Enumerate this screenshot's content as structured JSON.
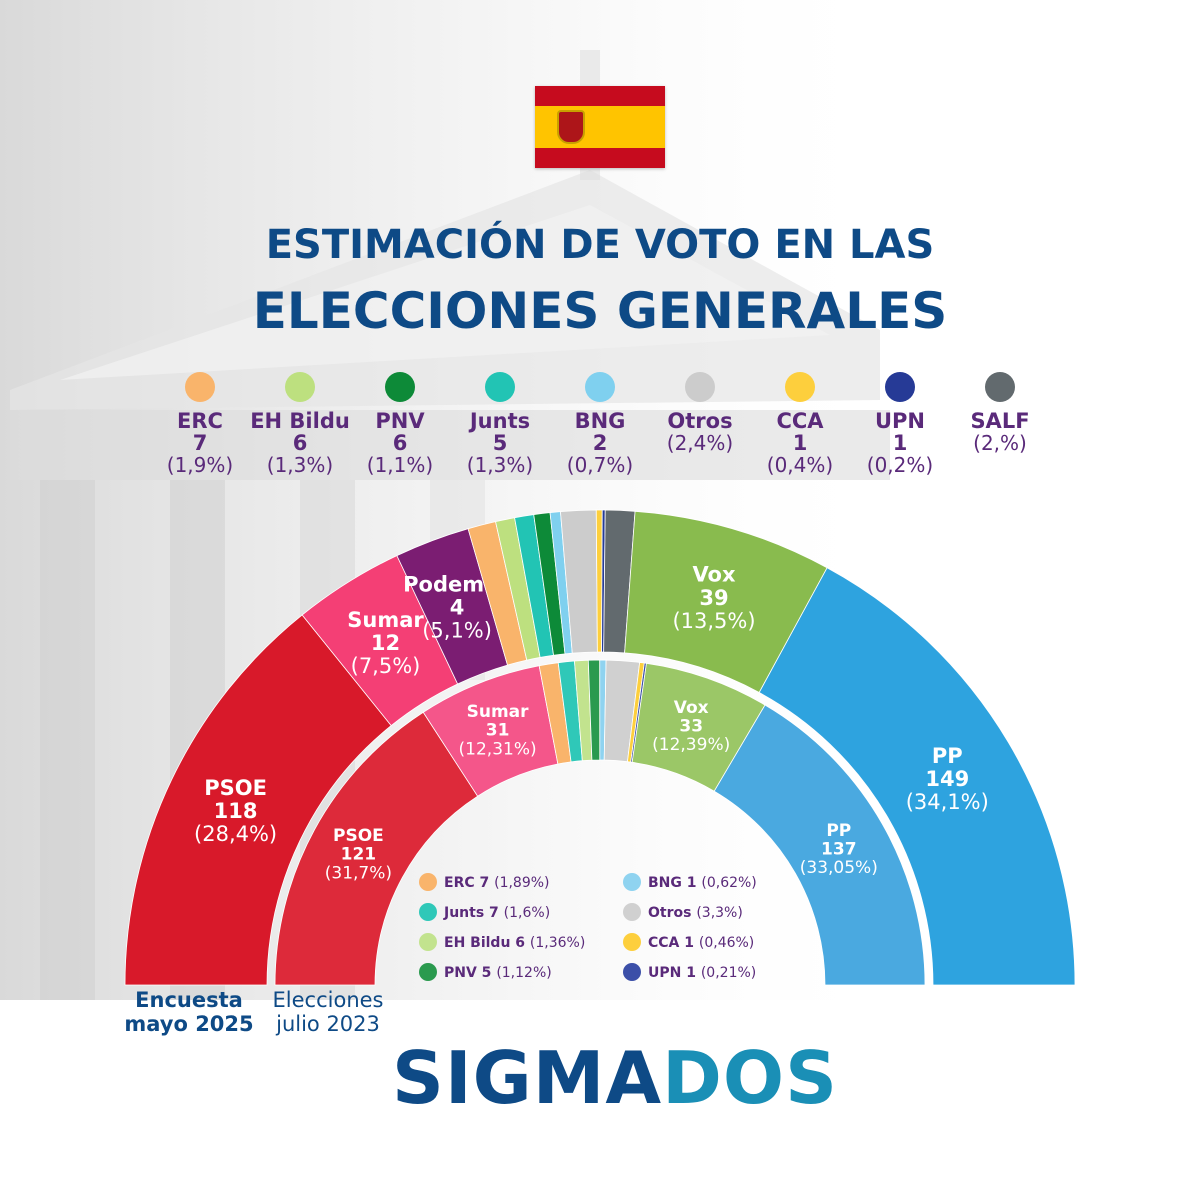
{
  "header": {
    "title_line1": "ESTIMACIÓN DE VOTO EN LAS",
    "title_line2": "ELECCIONES GENERALES"
  },
  "legend_top": [
    {
      "name": "ERC",
      "seats": "7",
      "pct": "(1,9%)",
      "color": "#f9b46b"
    },
    {
      "name": "EH Bildu",
      "seats": "6",
      "pct": "(1,3%)",
      "color": "#bde07f"
    },
    {
      "name": "PNV",
      "seats": "6",
      "pct": "(1,1%)",
      "color": "#0d8a38"
    },
    {
      "name": "Junts",
      "seats": "5",
      "pct": "(1,3%)",
      "color": "#22c4b4"
    },
    {
      "name": "BNG",
      "seats": "2",
      "pct": "(0,7%)",
      "color": "#7fd0ef"
    },
    {
      "name": "Otros",
      "seats": "",
      "pct": "(2,4%)",
      "color": "#cccccc"
    },
    {
      "name": "CCA",
      "seats": "1",
      "pct": "(0,4%)",
      "color": "#fdcf3d"
    },
    {
      "name": "UPN",
      "seats": "1",
      "pct": "(0,2%)",
      "color": "#263a96"
    },
    {
      "name": "SALF",
      "seats": "",
      "pct": "(2,%)",
      "color": "#626a6e"
    }
  ],
  "chart_data": [
    {
      "type": "pie",
      "title": "Encuesta mayo 2025",
      "categories": [
        "PSOE",
        "Sumar",
        "Podemos",
        "ERC",
        "EH Bildu",
        "Junts",
        "PNV",
        "BNG",
        "Otros",
        "CCA",
        "UPN",
        "SALF",
        "Vox",
        "PP"
      ],
      "seats": [
        118,
        12,
        4,
        7,
        6,
        5,
        6,
        2,
        null,
        1,
        1,
        null,
        39,
        149
      ],
      "pct": [
        28.4,
        7.5,
        5.1,
        1.9,
        1.3,
        1.3,
        1.1,
        0.7,
        2.4,
        0.4,
        0.2,
        2.0,
        13.5,
        34.1
      ],
      "pct_labels": [
        "(28,4%)",
        "(7,5%)",
        "(5,1%)",
        "(1,9%)",
        "(1,3%)",
        "(1,3%)",
        "(1,1%)",
        "(0,7%)",
        "(2,4%)",
        "(0,4%)",
        "(0,2%)",
        "(2,%)",
        "(13,5%)",
        "(34,1%)"
      ],
      "colors": [
        "#d8192a",
        "#f43f75",
        "#7b1d72",
        "#f9b46b",
        "#bde07f",
        "#22c4b4",
        "#0d8a38",
        "#7fd0ef",
        "#cccccc",
        "#fdcf3d",
        "#263a96",
        "#626a6e",
        "#89bb4e",
        "#2ea3df"
      ],
      "labeled": [
        0,
        1,
        2,
        12,
        13
      ]
    },
    {
      "type": "pie",
      "title": "Elecciones julio 2023",
      "categories": [
        "PSOE",
        "Sumar",
        "ERC",
        "Junts",
        "EH Bildu",
        "PNV",
        "BNG",
        "Otros",
        "CCA",
        "UPN",
        "Vox",
        "PP"
      ],
      "seats": [
        121,
        31,
        7,
        7,
        6,
        5,
        1,
        null,
        1,
        1,
        33,
        137
      ],
      "pct": [
        31.7,
        12.31,
        1.89,
        1.6,
        1.36,
        1.12,
        0.62,
        3.3,
        0.46,
        0.21,
        12.39,
        33.05
      ],
      "pct_labels": [
        "(31,7%)",
        "(12,31%)",
        "(1,89%)",
        "(1,6%)",
        "(1,36%)",
        "(1,12%)",
        "(0,62%)",
        "(3,3%)",
        "(0,46%)",
        "(0,21%)",
        "(12,39%)",
        "(33,05%)"
      ],
      "colors": [
        "#dd2a3a",
        "#f4568a",
        "#f9b46b",
        "#2fc8b8",
        "#c2e38e",
        "#2a9a4e",
        "#8fd3f0",
        "#d0d0d0",
        "#fdcf3d",
        "#3b4fa8",
        "#9bc767",
        "#4aa9e0"
      ],
      "labeled": [
        0,
        1,
        10,
        11
      ]
    }
  ],
  "inner_legend": [
    {
      "name": "ERC 7",
      "pct": "(1,89%)",
      "color": "#f9b46b"
    },
    {
      "name": "BNG 1",
      "pct": "(0,62%)",
      "color": "#8fd3f0"
    },
    {
      "name": "Junts 7",
      "pct": "(1,6%)",
      "color": "#2fc8b8"
    },
    {
      "name": "Otros",
      "pct": "(3,3%)",
      "color": "#d0d0d0"
    },
    {
      "name": "EH Bildu 6",
      "pct": "(1,36%)",
      "color": "#c2e38e"
    },
    {
      "name": "CCA 1",
      "pct": "(0,46%)",
      "color": "#fdcf3d"
    },
    {
      "name": "PNV 5",
      "pct": "(1,12%)",
      "color": "#2a9a4e"
    },
    {
      "name": "UPN 1",
      "pct": "(0,21%)",
      "color": "#3b4fa8"
    }
  ],
  "footer": {
    "left": "Encuesta mayo 2025",
    "right": "Elecciones julio 2023"
  },
  "brand": {
    "part1": "SIGMA",
    "part2": "DOS"
  }
}
